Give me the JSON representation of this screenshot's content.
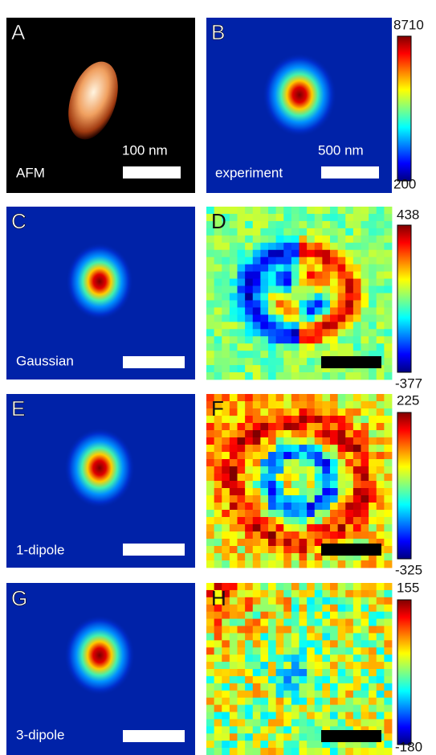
{
  "panels": [
    {
      "label": "A",
      "caption": "AFM",
      "scale_bar": "100 nm"
    },
    {
      "label": "B",
      "caption": "experiment",
      "scale_bar": "500 nm"
    },
    {
      "label": "C",
      "caption": "Gaussian"
    },
    {
      "label": "D"
    },
    {
      "label": "E",
      "caption": "1-dipole"
    },
    {
      "label": "F"
    },
    {
      "label": "G",
      "caption": "3-dipole"
    },
    {
      "label": "H"
    }
  ],
  "colorbars": [
    {
      "max": 8710,
      "min": 200
    },
    {
      "max": 438,
      "min": -377
    },
    {
      "max": 225,
      "min": -325
    },
    {
      "max": 155,
      "min": -180
    }
  ]
}
